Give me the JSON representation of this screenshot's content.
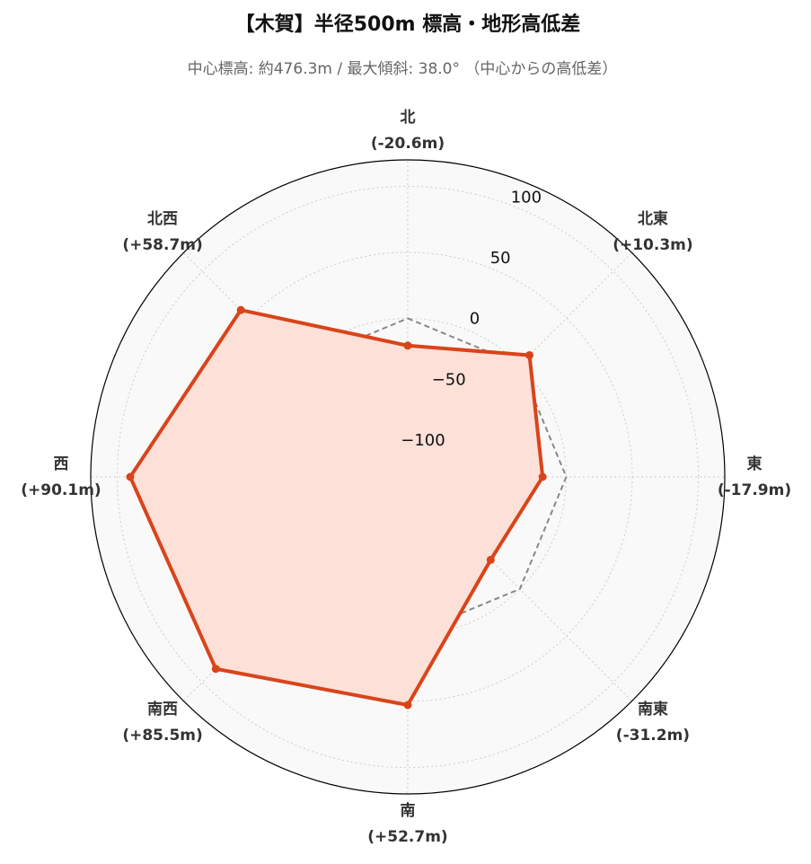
{
  "chart_data": {
    "type": "radar",
    "title": "【木賀】半径500m 標高・地形高低差",
    "subtitle": "中心標高: 約476.3m / 最大傾斜: 38.0° （中心からの高低差）",
    "categories": [
      "北",
      "北東",
      "東",
      "南東",
      "南",
      "南西",
      "西",
      "北西"
    ],
    "series": [
      {
        "color": "#d9441a",
        "fill": "#fde0d8",
        "values": [
          -20.6,
          10.3,
          -17.9,
          -31.2,
          52.7,
          85.5,
          90.1,
          58.7
        ],
        "value_labels": [
          "(-20.6m)",
          "(+10.3m)",
          "(-17.9m)",
          "(-31.2m)",
          "(+52.7m)",
          "(+85.5m)",
          "(+90.1m)",
          "(+58.7m)"
        ]
      }
    ],
    "reference_line": {
      "value": 0,
      "color": "#888888"
    },
    "ylim": [
      -120,
      120
    ],
    "yticks": [
      {
        "value": -100,
        "label": "−100"
      },
      {
        "value": -50,
        "label": "−50"
      },
      0,
      50,
      100
    ],
    "grid": true
  }
}
